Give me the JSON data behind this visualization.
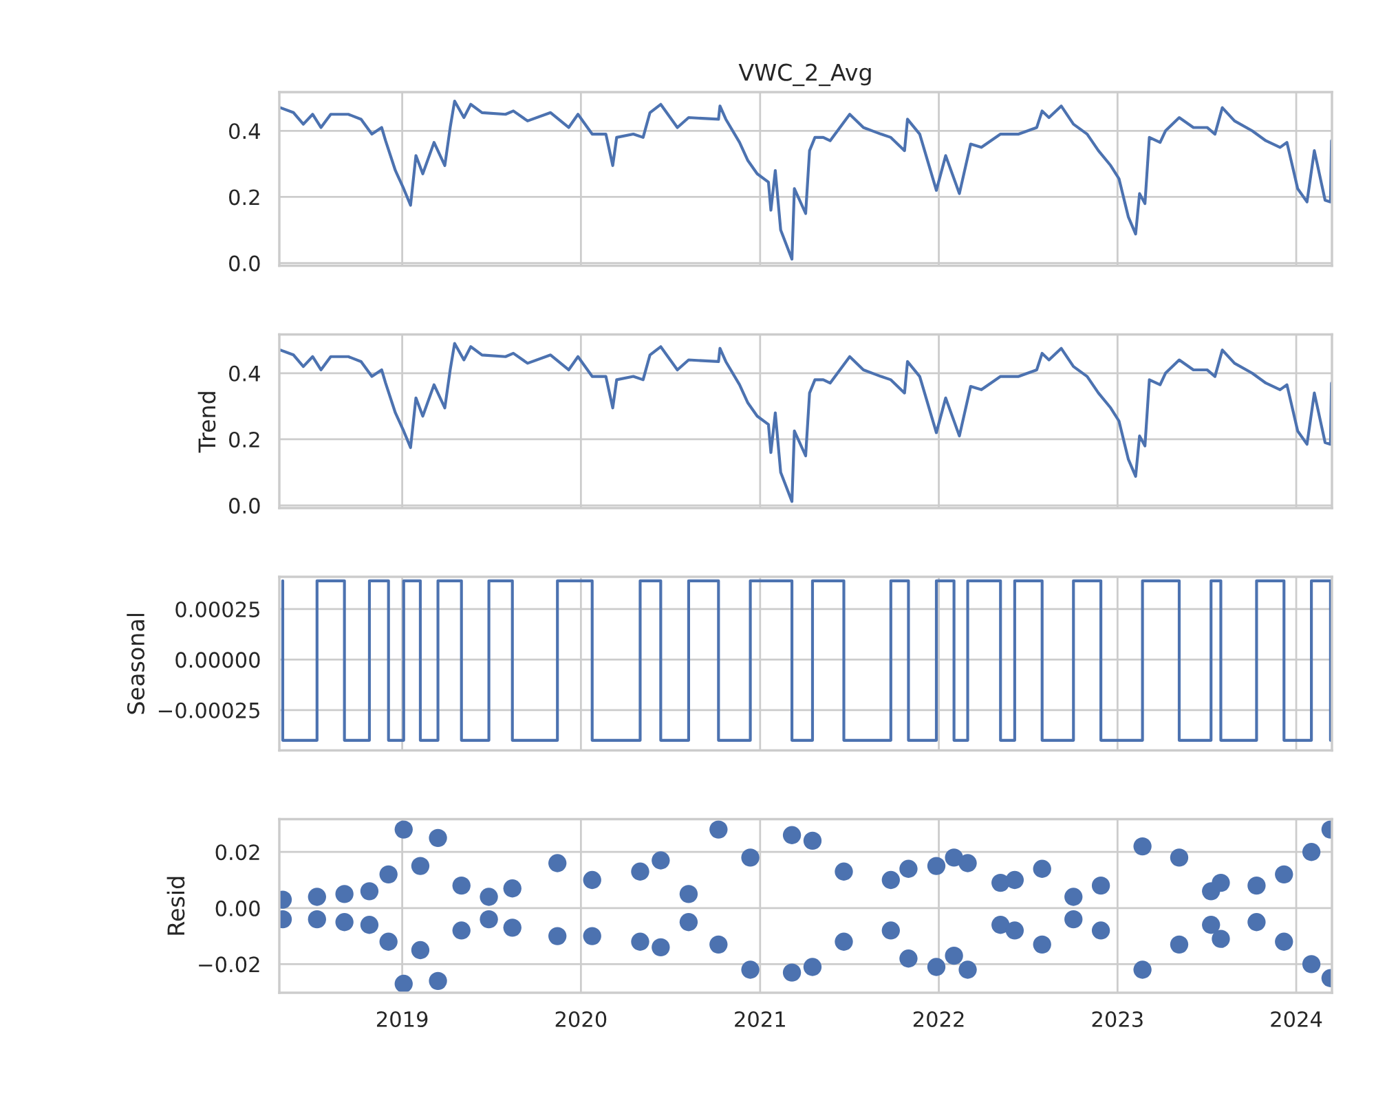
{
  "chart_data": [
    {
      "type": "line",
      "title": "VWC_2_Avg",
      "tick_labels": "y",
      "grid": true,
      "legend": false,
      "xlim": [
        "2018-04-25",
        "2024-03-14"
      ],
      "xticks": [
        "2019",
        "2020",
        "2021",
        "2022",
        "2023",
        "2024"
      ],
      "ylim": [
        -0.008,
        0.517
      ],
      "yticks": [
        {
          "value": 0,
          "label": "0.0"
        },
        {
          "value": 0.2,
          "label": "0.2"
        },
        {
          "value": 0.4,
          "label": "0.4"
        }
      ],
      "series": [
        {
          "color": "#4c72b0",
          "line_style": "solid",
          "x": [
            "2018-04-27",
            "2018-05-24",
            "2018-06-13",
            "2018-07-02",
            "2018-07-19",
            "2018-08-08",
            "2018-09-13",
            "2018-10-09",
            "2018-10-31",
            "2018-11-20",
            "2018-11-28",
            "2018-12-18",
            "2019-01-04",
            "2019-01-18",
            "2019-01-29",
            "2019-02-12",
            "2019-03-07",
            "2019-03-29",
            "2019-04-09",
            "2019-04-18",
            "2019-05-07",
            "2019-05-21",
            "2019-06-13",
            "2019-07-31",
            "2019-08-16",
            "2019-09-14",
            "2019-10-31",
            "2019-12-07",
            "2019-12-26",
            "2020-01-24",
            "2020-02-21",
            "2020-03-06",
            "2020-03-14",
            "2020-04-17",
            "2020-05-07",
            "2020-05-21",
            "2020-06-12",
            "2020-07-16",
            "2020-08-08",
            "2020-10-08",
            "2020-10-11",
            "2020-10-23",
            "2020-11-20",
            "2020-12-07",
            "2020-12-26",
            "2021-01-18",
            "2021-01-23",
            "2021-02-01",
            "2021-02-12",
            "2021-03-07",
            "2021-03-12",
            "2021-04-04",
            "2021-04-12",
            "2021-04-23",
            "2021-05-10",
            "2021-05-24",
            "2021-06-13",
            "2021-07-03",
            "2021-07-31",
            "2021-09-05",
            "2021-09-25",
            "2021-10-23",
            "2021-10-29",
            "2021-11-23",
            "2021-12-27",
            "2022-01-15",
            "2022-02-12",
            "2022-03-07",
            "2022-03-29",
            "2022-05-07",
            "2022-06-13",
            "2022-07-20",
            "2022-07-31",
            "2022-08-14",
            "2022-09-08",
            "2022-10-03",
            "2022-10-31",
            "2022-11-23",
            "2022-12-18",
            "2023-01-04",
            "2023-01-23",
            "2023-02-07",
            "2023-02-15",
            "2023-02-26",
            "2023-03-07",
            "2023-03-29",
            "2023-04-09",
            "2023-05-07",
            "2023-06-05",
            "2023-07-03",
            "2023-07-19",
            "2023-08-03",
            "2023-08-28",
            "2023-10-03",
            "2023-10-31",
            "2023-11-29",
            "2023-12-13",
            "2024-01-04",
            "2024-01-23",
            "2024-02-07",
            "2024-02-29",
            "2024-03-11",
            "2024-03-13"
          ],
          "values": [
            0.47,
            0.455,
            0.42,
            0.45,
            0.41,
            0.45,
            0.45,
            0.435,
            0.39,
            0.41,
            0.37,
            0.28,
            0.225,
            0.175,
            0.325,
            0.27,
            0.365,
            0.295,
            0.41,
            0.49,
            0.44,
            0.48,
            0.455,
            0.45,
            0.46,
            0.43,
            0.455,
            0.41,
            0.45,
            0.39,
            0.39,
            0.295,
            0.38,
            0.39,
            0.38,
            0.455,
            0.48,
            0.41,
            0.44,
            0.435,
            0.475,
            0.435,
            0.365,
            0.31,
            0.27,
            0.245,
            0.16,
            0.28,
            0.1,
            0.012,
            0.225,
            0.15,
            0.34,
            0.38,
            0.38,
            0.37,
            0.41,
            0.45,
            0.41,
            0.39,
            0.38,
            0.34,
            0.435,
            0.39,
            0.22,
            0.325,
            0.21,
            0.36,
            0.35,
            0.39,
            0.39,
            0.41,
            0.46,
            0.44,
            0.475,
            0.42,
            0.39,
            0.34,
            0.295,
            0.255,
            0.14,
            0.088,
            0.21,
            0.18,
            0.38,
            0.365,
            0.4,
            0.44,
            0.41,
            0.41,
            0.39,
            0.47,
            0.43,
            0.4,
            0.37,
            0.35,
            0.365,
            0.225,
            0.185,
            0.34,
            0.19,
            0.185,
            0.37
          ]
        }
      ]
    },
    {
      "type": "line",
      "ylabel": "Trend",
      "tick_labels": "y",
      "grid": true,
      "legend": false,
      "xlim": [
        "2018-04-25",
        "2024-03-14"
      ],
      "xticks": [
        "2019",
        "2020",
        "2021",
        "2022",
        "2023",
        "2024"
      ],
      "ylim": [
        -0.008,
        0.517
      ],
      "yticks": [
        {
          "value": 0,
          "label": "0.0"
        },
        {
          "value": 0.2,
          "label": "0.2"
        },
        {
          "value": 0.4,
          "label": "0.4"
        }
      ],
      "series": [
        {
          "color": "#4c72b0",
          "line_style": "solid",
          "x": [
            "2018-04-27",
            "2018-05-24",
            "2018-06-13",
            "2018-07-02",
            "2018-07-19",
            "2018-08-08",
            "2018-09-13",
            "2018-10-09",
            "2018-10-31",
            "2018-11-20",
            "2018-11-28",
            "2018-12-18",
            "2019-01-04",
            "2019-01-18",
            "2019-01-29",
            "2019-02-12",
            "2019-03-07",
            "2019-03-29",
            "2019-04-09",
            "2019-04-18",
            "2019-05-07",
            "2019-05-21",
            "2019-06-13",
            "2019-07-31",
            "2019-08-16",
            "2019-09-14",
            "2019-10-31",
            "2019-12-07",
            "2019-12-26",
            "2020-01-24",
            "2020-02-21",
            "2020-03-06",
            "2020-03-14",
            "2020-04-17",
            "2020-05-07",
            "2020-05-21",
            "2020-06-12",
            "2020-07-16",
            "2020-08-08",
            "2020-10-08",
            "2020-10-11",
            "2020-10-23",
            "2020-11-20",
            "2020-12-07",
            "2020-12-26",
            "2021-01-18",
            "2021-01-23",
            "2021-02-01",
            "2021-02-12",
            "2021-03-07",
            "2021-03-12",
            "2021-04-04",
            "2021-04-12",
            "2021-04-23",
            "2021-05-10",
            "2021-05-24",
            "2021-06-13",
            "2021-07-03",
            "2021-07-31",
            "2021-09-05",
            "2021-09-25",
            "2021-10-23",
            "2021-10-29",
            "2021-11-23",
            "2021-12-27",
            "2022-01-15",
            "2022-02-12",
            "2022-03-07",
            "2022-03-29",
            "2022-05-07",
            "2022-06-13",
            "2022-07-20",
            "2022-07-31",
            "2022-08-14",
            "2022-09-08",
            "2022-10-03",
            "2022-10-31",
            "2022-11-23",
            "2022-12-18",
            "2023-01-04",
            "2023-01-23",
            "2023-02-07",
            "2023-02-15",
            "2023-02-26",
            "2023-03-07",
            "2023-03-29",
            "2023-04-09",
            "2023-05-07",
            "2023-06-05",
            "2023-07-03",
            "2023-07-19",
            "2023-08-03",
            "2023-08-28",
            "2023-10-03",
            "2023-10-31",
            "2023-11-29",
            "2023-12-13",
            "2024-01-04",
            "2024-01-23",
            "2024-02-07",
            "2024-02-29",
            "2024-03-11",
            "2024-03-13"
          ],
          "values": [
            0.47,
            0.455,
            0.42,
            0.45,
            0.41,
            0.45,
            0.45,
            0.435,
            0.39,
            0.41,
            0.37,
            0.28,
            0.225,
            0.175,
            0.325,
            0.27,
            0.365,
            0.295,
            0.41,
            0.49,
            0.44,
            0.48,
            0.455,
            0.45,
            0.46,
            0.43,
            0.455,
            0.41,
            0.45,
            0.39,
            0.39,
            0.295,
            0.38,
            0.39,
            0.38,
            0.455,
            0.48,
            0.41,
            0.44,
            0.435,
            0.475,
            0.435,
            0.365,
            0.31,
            0.27,
            0.245,
            0.16,
            0.28,
            0.1,
            0.012,
            0.225,
            0.15,
            0.34,
            0.38,
            0.38,
            0.37,
            0.41,
            0.45,
            0.41,
            0.39,
            0.38,
            0.34,
            0.435,
            0.39,
            0.22,
            0.325,
            0.21,
            0.36,
            0.35,
            0.39,
            0.39,
            0.41,
            0.46,
            0.44,
            0.475,
            0.42,
            0.39,
            0.34,
            0.295,
            0.255,
            0.14,
            0.088,
            0.21,
            0.18,
            0.38,
            0.365,
            0.4,
            0.44,
            0.41,
            0.41,
            0.39,
            0.47,
            0.43,
            0.4,
            0.37,
            0.35,
            0.365,
            0.225,
            0.185,
            0.34,
            0.19,
            0.185,
            0.37
          ]
        }
      ]
    },
    {
      "type": "line",
      "ylabel": "Seasonal",
      "tick_labels": "y",
      "grid": true,
      "legend": false,
      "xlim": [
        "2018-04-25",
        "2024-03-14"
      ],
      "xticks": [
        "2019",
        "2020",
        "2021",
        "2022",
        "2023",
        "2024"
      ],
      "ylim": [
        -0.00045,
        0.00041
      ],
      "yticks": [
        {
          "value": -0.00025,
          "label": "−0.00025"
        },
        {
          "value": 0,
          "label": "0.00000"
        },
        {
          "value": 0.00025,
          "label": "0.00025"
        }
      ],
      "series": [
        {
          "color": "#4c72b0",
          "line_style": "solid",
          "x": [
            "2018-05-02",
            "2018-05-02",
            "2018-07-11",
            "2018-07-11",
            "2018-09-05",
            "2018-09-05",
            "2018-10-26",
            "2018-10-26",
            "2018-12-04",
            "2018-12-04",
            "2019-01-04",
            "2019-01-04",
            "2019-02-07",
            "2019-02-07",
            "2019-03-15",
            "2019-03-15",
            "2019-05-02",
            "2019-05-02",
            "2019-06-27",
            "2019-06-27",
            "2019-08-14",
            "2019-08-14",
            "2019-11-14",
            "2019-11-14",
            "2020-01-24",
            "2020-01-24",
            "2020-05-01",
            "2020-05-01",
            "2020-06-12",
            "2020-06-12",
            "2020-08-08",
            "2020-08-08",
            "2020-10-08",
            "2020-10-08",
            "2020-12-12",
            "2020-12-12",
            "2021-03-07",
            "2021-03-07",
            "2021-04-18",
            "2021-04-18",
            "2021-06-21",
            "2021-06-21",
            "2021-09-25",
            "2021-09-25",
            "2021-10-31",
            "2021-10-31",
            "2021-12-27",
            "2021-12-27",
            "2022-02-01",
            "2022-02-01",
            "2022-03-01",
            "2022-03-01",
            "2022-05-07",
            "2022-05-07",
            "2022-06-05",
            "2022-06-05",
            "2022-07-31",
            "2022-07-31",
            "2022-10-03",
            "2022-10-03",
            "2022-11-28",
            "2022-11-28",
            "2023-02-21",
            "2023-02-21",
            "2023-05-07",
            "2023-05-07",
            "2023-07-11",
            "2023-07-11",
            "2023-07-31",
            "2023-07-31",
            "2023-10-12",
            "2023-10-12",
            "2023-12-07",
            "2023-12-07",
            "2024-02-01",
            "2024-02-01",
            "2024-03-11",
            "2024-03-11"
          ],
          "values": [
            0.00039,
            -0.0004,
            -0.0004,
            0.00039,
            0.00039,
            -0.0004,
            -0.0004,
            0.00039,
            0.00039,
            -0.0004,
            -0.0004,
            0.00039,
            0.00039,
            -0.0004,
            -0.0004,
            0.00039,
            0.00039,
            -0.0004,
            -0.0004,
            0.00039,
            0.00039,
            -0.0004,
            -0.0004,
            0.00039,
            0.00039,
            -0.0004,
            -0.0004,
            0.00039,
            0.00039,
            -0.0004,
            -0.0004,
            0.00039,
            0.00039,
            -0.0004,
            -0.0004,
            0.00039,
            0.00039,
            -0.0004,
            -0.0004,
            0.00039,
            0.00039,
            -0.0004,
            -0.0004,
            0.00039,
            0.00039,
            -0.0004,
            -0.0004,
            0.00039,
            0.00039,
            -0.0004,
            -0.0004,
            0.00039,
            0.00039,
            -0.0004,
            -0.0004,
            0.00039,
            0.00039,
            -0.0004,
            -0.0004,
            0.00039,
            0.00039,
            -0.0004,
            -0.0004,
            0.00039,
            0.00039,
            -0.0004,
            -0.0004,
            0.00039,
            0.00039,
            -0.0004,
            -0.0004,
            0.00039,
            0.00039,
            -0.0004,
            -0.0004,
            0.00039,
            0.00039,
            -0.0004
          ]
        }
      ]
    },
    {
      "type": "scatter",
      "ylabel": "Resid",
      "grid": true,
      "legend": false,
      "marker": "circle",
      "xlim": [
        "2018-04-25",
        "2024-03-14"
      ],
      "xticks": [
        "2019",
        "2020",
        "2021",
        "2022",
        "2023",
        "2024"
      ],
      "ylim": [
        -0.0302,
        0.0317
      ],
      "yticks": [
        {
          "value": -0.02,
          "label": "−0.02"
        },
        {
          "value": 0,
          "label": "0.00"
        },
        {
          "value": 0.02,
          "label": "0.02"
        }
      ],
      "series": [
        {
          "color": "#4c72b0",
          "x": [
            "2018-05-02",
            "2018-05-02",
            "2018-07-11",
            "2018-07-11",
            "2018-09-05",
            "2018-09-05",
            "2018-10-26",
            "2018-10-26",
            "2018-12-04",
            "2018-12-04",
            "2019-01-04",
            "2019-01-04",
            "2019-02-07",
            "2019-02-07",
            "2019-03-15",
            "2019-03-15",
            "2019-05-02",
            "2019-05-02",
            "2019-06-27",
            "2019-06-27",
            "2019-08-14",
            "2019-08-14",
            "2019-11-14",
            "2019-11-14",
            "2020-01-24",
            "2020-01-24",
            "2020-05-01",
            "2020-05-01",
            "2020-06-12",
            "2020-06-12",
            "2020-08-08",
            "2020-08-08",
            "2020-10-08",
            "2020-10-08",
            "2020-12-12",
            "2020-12-12",
            "2021-03-07",
            "2021-03-07",
            "2021-04-18",
            "2021-04-18",
            "2021-06-21",
            "2021-06-21",
            "2021-09-25",
            "2021-09-25",
            "2021-10-31",
            "2021-10-31",
            "2021-12-27",
            "2021-12-27",
            "2022-02-01",
            "2022-02-01",
            "2022-03-01",
            "2022-03-01",
            "2022-05-07",
            "2022-05-07",
            "2022-06-05",
            "2022-06-05",
            "2022-07-31",
            "2022-07-31",
            "2022-10-03",
            "2022-10-03",
            "2022-11-28",
            "2022-11-28",
            "2023-02-21",
            "2023-02-21",
            "2023-05-07",
            "2023-05-07",
            "2023-07-11",
            "2023-07-11",
            "2023-07-31",
            "2023-07-31",
            "2023-10-12",
            "2023-10-12",
            "2023-12-07",
            "2023-12-07",
            "2024-02-01",
            "2024-02-01",
            "2024-03-11",
            "2024-03-11"
          ],
          "values": [
            0.003,
            -0.004,
            0.004,
            -0.004,
            0.005,
            -0.005,
            0.006,
            -0.006,
            0.012,
            -0.012,
            0.028,
            -0.027,
            0.015,
            -0.015,
            0.025,
            -0.026,
            0.008,
            -0.008,
            0.004,
            -0.004,
            0.007,
            -0.007,
            0.016,
            -0.01,
            0.01,
            -0.01,
            0.013,
            -0.012,
            0.017,
            -0.014,
            0.005,
            -0.005,
            0.028,
            -0.013,
            0.018,
            -0.022,
            0.026,
            -0.023,
            0.024,
            -0.021,
            0.013,
            -0.012,
            0.01,
            -0.008,
            0.014,
            -0.018,
            0.015,
            -0.021,
            0.018,
            -0.017,
            0.016,
            -0.022,
            0.009,
            -0.006,
            0.01,
            -0.008,
            0.014,
            -0.013,
            0.004,
            -0.004,
            0.008,
            -0.008,
            0.022,
            -0.022,
            0.018,
            -0.013,
            0.006,
            -0.006,
            0.009,
            -0.011,
            0.008,
            -0.005,
            0.012,
            -0.012,
            0.02,
            -0.02,
            0.028,
            -0.025
          ]
        }
      ]
    }
  ]
}
